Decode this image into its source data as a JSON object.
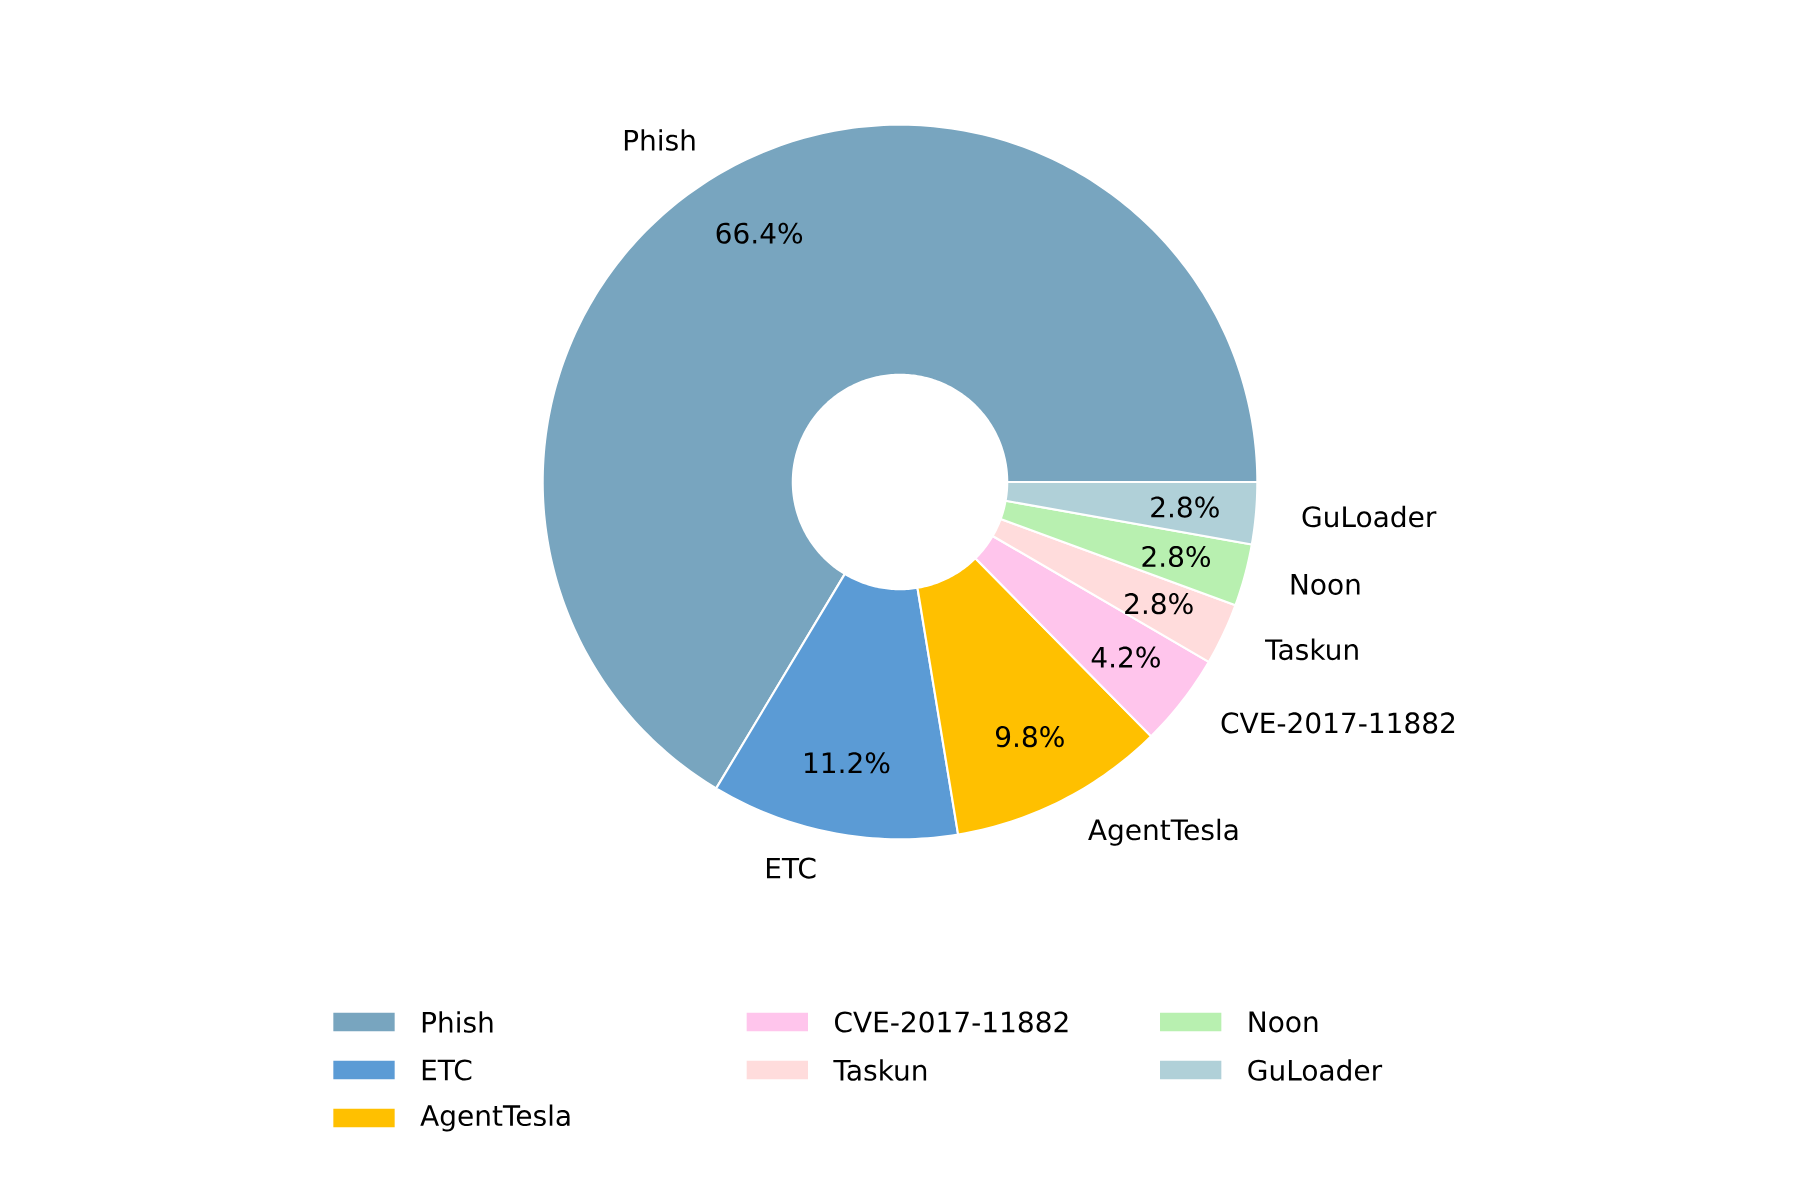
{
  "chart_data": {
    "type": "donut",
    "categories": [
      "Phish",
      "ETC",
      "AgentTesla",
      "CVE-2017-11882",
      "Taskun",
      "Noon",
      "GuLoader"
    ],
    "values": [
      66.4,
      11.2,
      9.8,
      4.2,
      2.8,
      2.8,
      2.8
    ],
    "colors": [
      "#78a5bf",
      "#5b9bd5",
      "#ffc000",
      "#ffc5ec",
      "#ffdcdc",
      "#b8f0b0",
      "#b0d0d8"
    ],
    "value_labels": [
      "66.4%",
      "11.2%",
      "9.8%",
      "4.2%",
      "2.8%",
      "2.8%",
      "2.8%"
    ],
    "legend": "bottom"
  }
}
